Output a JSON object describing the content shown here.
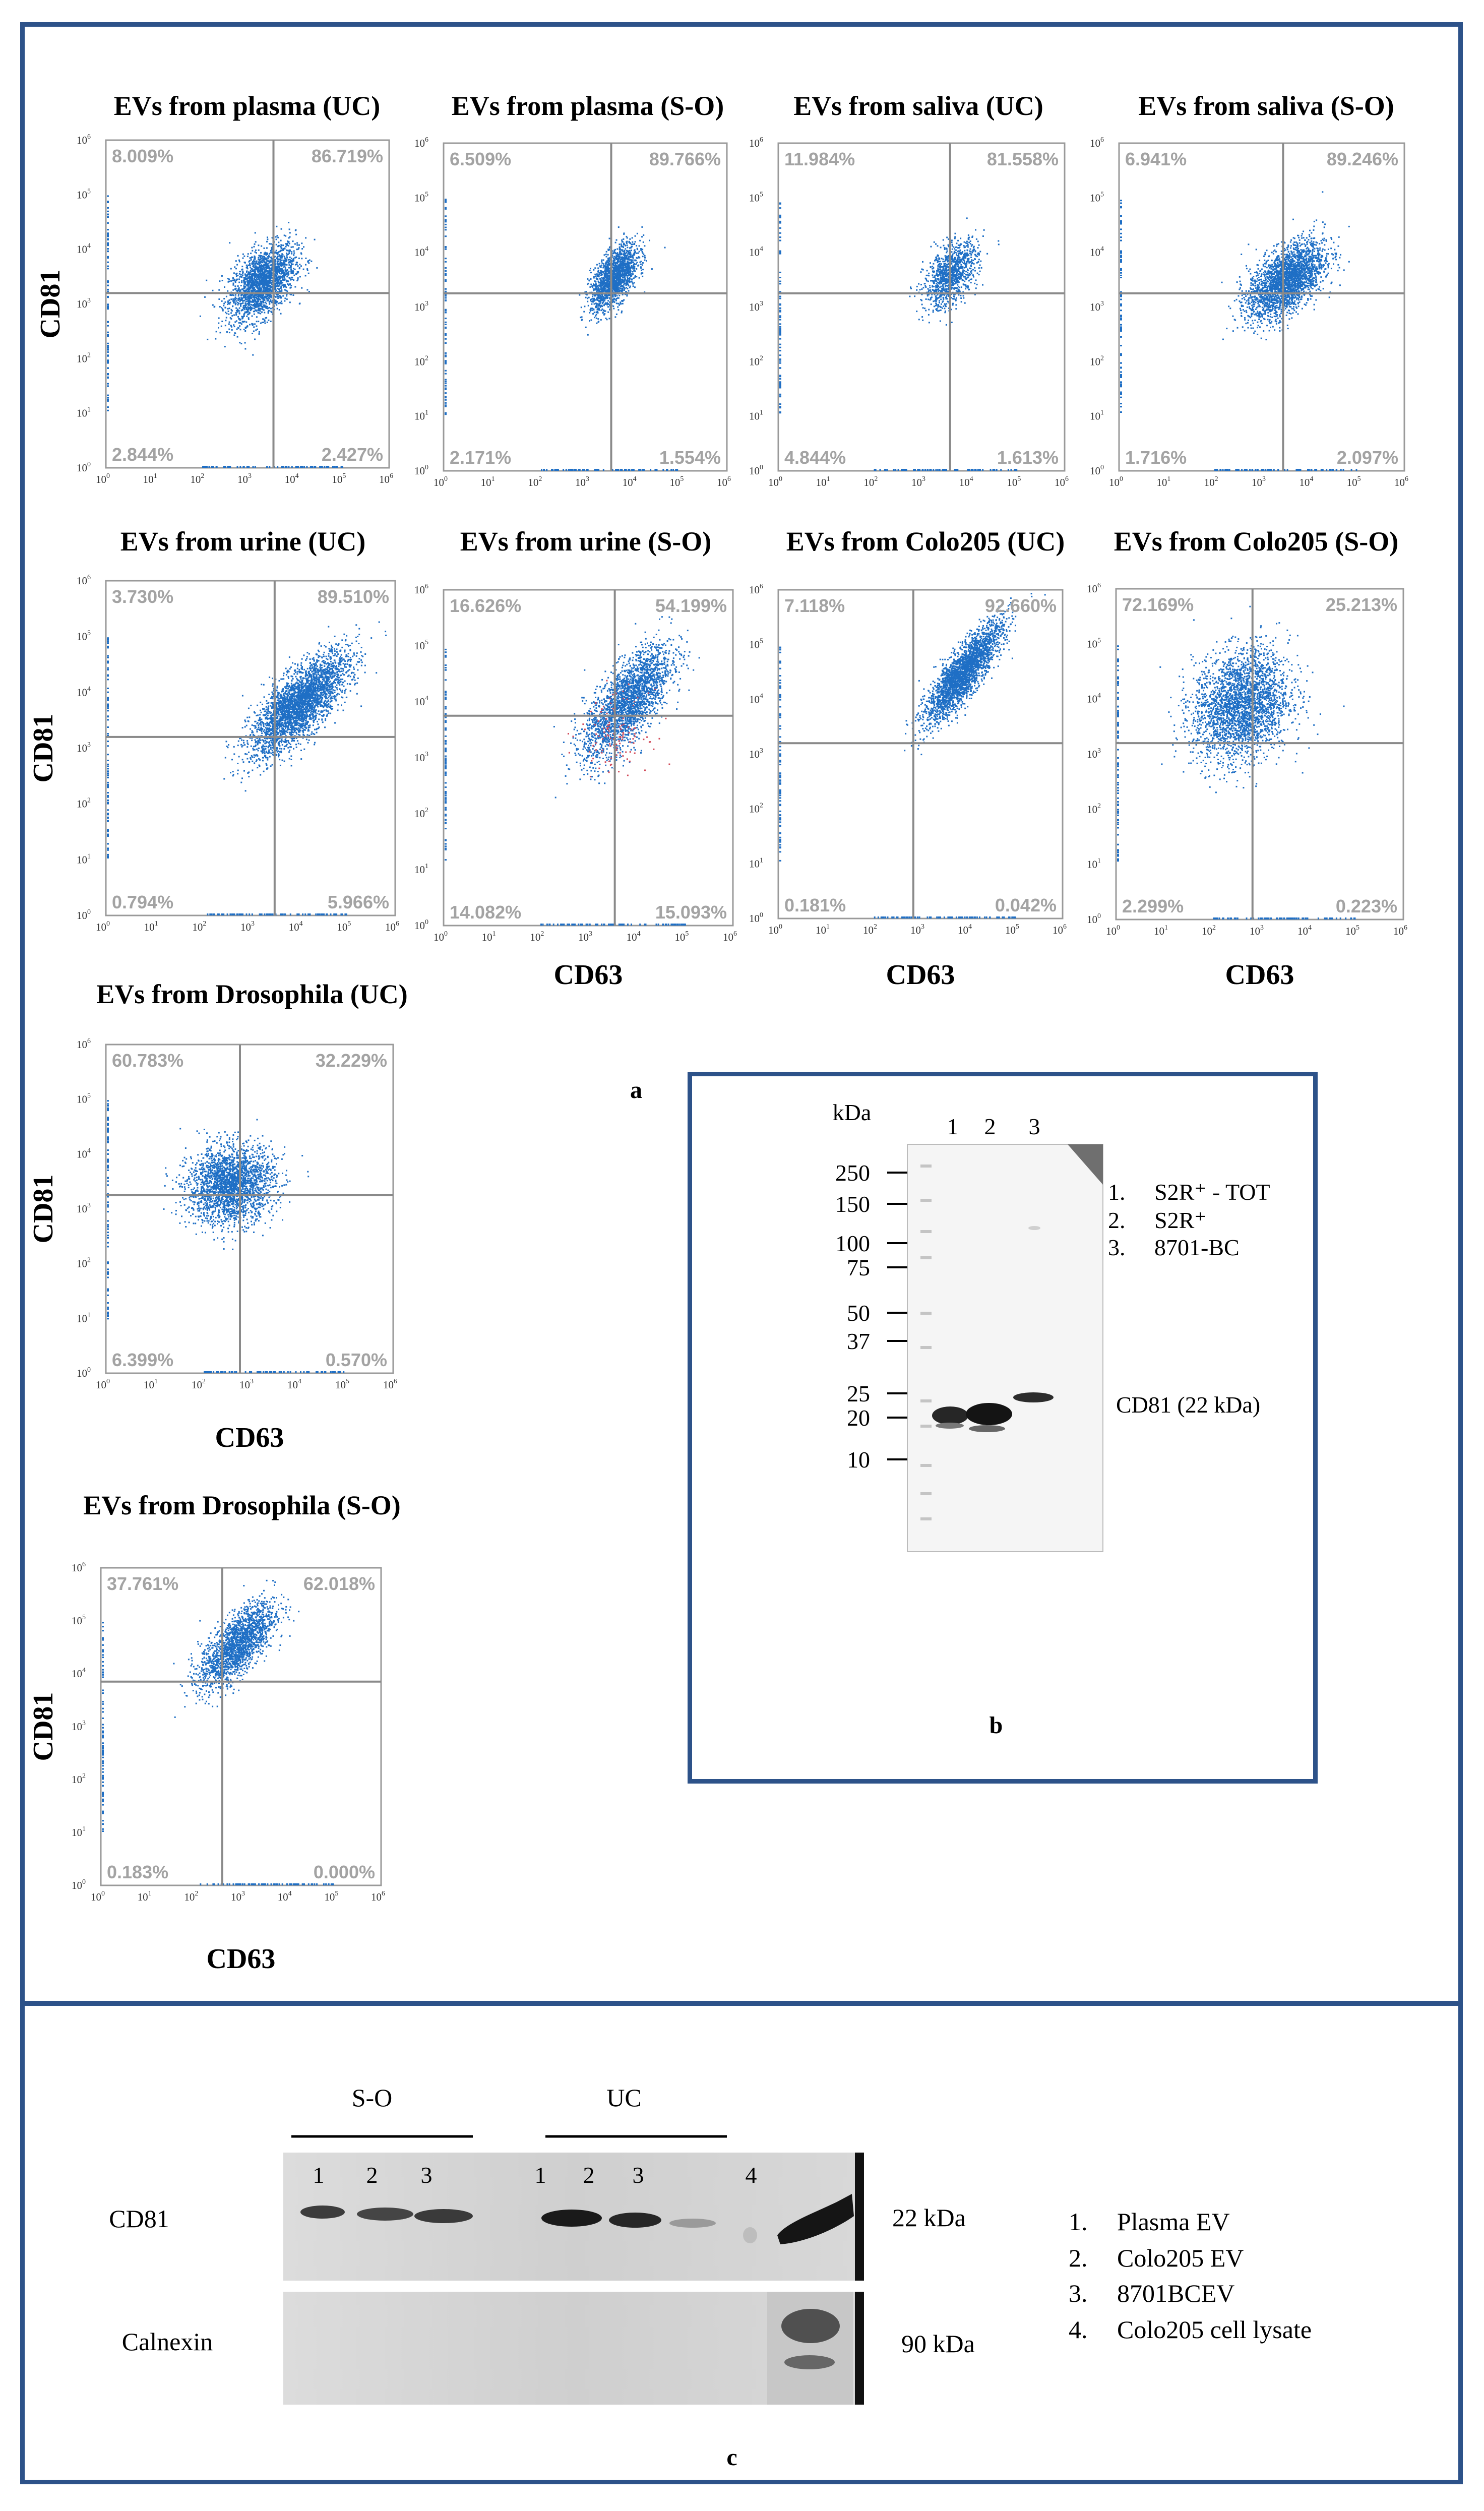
{
  "figure": {
    "panel_letters": {
      "a": "a",
      "b": "b",
      "c": "c"
    },
    "axis_labels": {
      "y": "CD81",
      "x": "CD63"
    },
    "tick_exponents": [
      "0",
      "1",
      "2",
      "3",
      "4",
      "5",
      "6"
    ],
    "tick_base": "10"
  },
  "scatter_plots": [
    {
      "title": "EVs from plasma  (UC)",
      "q": {
        "ul": "8.009%",
        "ur": "86.719%",
        "ll": "2.844%",
        "lr": "2.427%"
      },
      "gate": {
        "x": 3.55,
        "y": 3.2
      },
      "cloud": {
        "x": 3.3,
        "y": 3.4,
        "sx": 0.35,
        "sy": 0.35,
        "rho": 0.5,
        "n": 2200
      },
      "red": 0
    },
    {
      "title": "EVs from plasma  (S-O)",
      "q": {
        "ul": "6.509%",
        "ur": "89.766%",
        "ll": "2.171%",
        "lr": "1.554%"
      },
      "gate": {
        "x": 3.55,
        "y": 3.25
      },
      "cloud": {
        "x": 3.6,
        "y": 3.55,
        "sx": 0.25,
        "sy": 0.3,
        "rho": 0.6,
        "n": 1700
      },
      "red": 0
    },
    {
      "title": "EVs from saliva  (UC)",
      "q": {
        "ul": "11.984%",
        "ur": "81.558%",
        "ll": "4.844%",
        "lr": "1.613%"
      },
      "gate": {
        "x": 3.6,
        "y": 3.25
      },
      "cloud": {
        "x": 3.6,
        "y": 3.6,
        "sx": 0.28,
        "sy": 0.3,
        "rho": 0.5,
        "n": 1100
      },
      "red": 0
    },
    {
      "title": "EVs from saliva  (S-O)",
      "q": {
        "ul": "6.941%",
        "ur": "89.246%",
        "ll": "1.716%",
        "lr": "2.097%"
      },
      "gate": {
        "x": 3.45,
        "y": 3.25
      },
      "cloud": {
        "x": 3.5,
        "y": 3.5,
        "sx": 0.4,
        "sy": 0.35,
        "rho": 0.55,
        "n": 2600
      },
      "red": 0
    },
    {
      "title": "EVs from urine  (UC)",
      "q": {
        "ul": "3.730%",
        "ur": "89.510%",
        "ll": "0.794%",
        "lr": "5.966%"
      },
      "gate": {
        "x": 3.5,
        "y": 3.2
      },
      "cloud": {
        "x": 4.0,
        "y": 3.8,
        "sx": 0.5,
        "sy": 0.45,
        "rho": 0.75,
        "n": 3200
      },
      "red": 0
    },
    {
      "title": "EVs from urine  (S-O)",
      "q": {
        "ul": "16.626%",
        "ur": "54.199%",
        "ll": "14.082%",
        "lr": "15.093%"
      },
      "gate": {
        "x": 3.55,
        "y": 3.75
      },
      "cloud": {
        "x": 3.8,
        "y": 4.0,
        "sx": 0.45,
        "sy": 0.5,
        "rho": 0.7,
        "n": 2400
      },
      "red": 120
    },
    {
      "title": "EVs from Colo205  (UC)",
      "q": {
        "ul": "7.118%",
        "ur": "92.660%",
        "ll": "0.181%",
        "lr": "0.042%"
      },
      "gate": {
        "x": 2.85,
        "y": 3.2
      },
      "cloud": {
        "x": 3.9,
        "y": 4.5,
        "sx": 0.4,
        "sy": 0.45,
        "rho": 0.85,
        "n": 2600
      },
      "red": 0
    },
    {
      "title": "EVs from Colo205  (S-O)",
      "q": {
        "ul": "72.169%",
        "ur": "25.213%",
        "ll": "2.299%",
        "lr": "0.223%"
      },
      "gate": {
        "x": 2.85,
        "y": 3.2
      },
      "cloud": {
        "x": 2.6,
        "y": 3.9,
        "sx": 0.5,
        "sy": 0.5,
        "rho": 0.2,
        "n": 2800
      },
      "red": 0
    },
    {
      "title": "EVs from Drosophila  (UC)",
      "q": {
        "ul": "60.783%",
        "ur": "32.229%",
        "ll": "6.399%",
        "lr": "0.570%"
      },
      "gate": {
        "x": 2.8,
        "y": 3.25
      },
      "cloud": {
        "x": 2.6,
        "y": 3.45,
        "sx": 0.45,
        "sy": 0.35,
        "rho": 0.1,
        "n": 2400
      },
      "red": 0
    },
    {
      "title": "EVs from Drosophila  (S-O)",
      "q": {
        "ul": "37.761%",
        "ur": "62.018%",
        "ll": "0.183%",
        "lr": "0.000%"
      },
      "gate": {
        "x": 2.6,
        "y": 3.85
      },
      "cloud": {
        "x": 2.9,
        "y": 4.55,
        "sx": 0.4,
        "sy": 0.4,
        "rho": 0.7,
        "n": 1900
      },
      "red": 0
    }
  ],
  "western_b": {
    "unit": "kDa",
    "lanes": [
      "1",
      "2",
      "3"
    ],
    "markers": [
      "250",
      "150",
      "100",
      "75",
      "50",
      "37",
      "25",
      "20",
      "10"
    ],
    "legend": [
      "1.",
      "S2R⁺ - TOT",
      "2.",
      "S2R⁺",
      "3.",
      "8701-BC"
    ],
    "band_label": "CD81 (22 kDa)"
  },
  "western_c": {
    "groups": [
      "S-O",
      "UC"
    ],
    "so_lanes": [
      "1",
      "2",
      "3"
    ],
    "uc_lanes": [
      "1",
      "2",
      "3"
    ],
    "extra_lane": "4",
    "rows": [
      {
        "name": "CD81",
        "size": "22 kDa"
      },
      {
        "name": "Calnexin",
        "size": "90 kDa"
      }
    ],
    "legend": [
      "1.",
      "Plasma EV",
      "2.",
      "Colo205 EV",
      "3.",
      "8701BCEV",
      "4.",
      "Colo205 cell lysate"
    ]
  }
}
